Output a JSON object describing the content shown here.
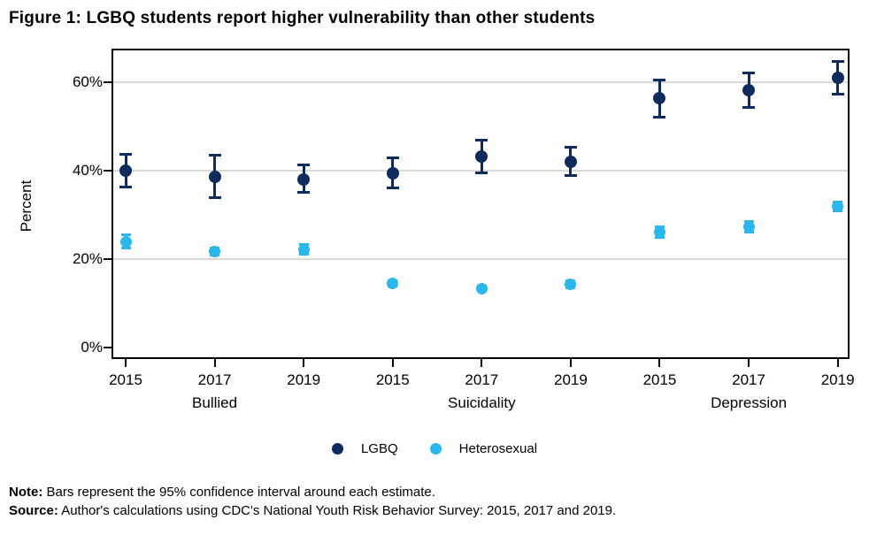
{
  "title": "Figure 1: LGBQ students report higher vulnerability than other students",
  "colors": {
    "lgbq": "#0e2b5e",
    "heterosexual": "#2ab7ec",
    "gridline": "#d9d9d9",
    "frame": "#000000",
    "text": "#000000"
  },
  "notes": {
    "note_label": "Note:",
    "note_text": " Bars represent the 95% confidence interval around each estimate.",
    "source_label": "Source:",
    "source_text": " Author's calculations using CDC's National Youth Risk Behavior Survey: 2015, 2017 and 2019."
  },
  "chart_data": {
    "type": "scatter",
    "title": "Figure 1: LGBQ students report higher vulnerability than other students",
    "xlabel": "",
    "ylabel": "Percent",
    "grid": "horizontal",
    "legend_position": "bottom",
    "x_slots": [
      "2015",
      "2017",
      "2019",
      "2015",
      "2017",
      "2019",
      "2015",
      "2017",
      "2019"
    ],
    "groups": [
      {
        "label": "Bullied",
        "slot": 1
      },
      {
        "label": "Suicidality",
        "slot": 4
      },
      {
        "label": "Depression",
        "slot": 7
      }
    ],
    "yticks": [
      {
        "value": 0,
        "label": "0%",
        "grid": false
      },
      {
        "value": 20,
        "label": "20%",
        "grid": true
      },
      {
        "value": 40,
        "label": "40%",
        "grid": true
      },
      {
        "value": 60,
        "label": "60%",
        "grid": true
      }
    ],
    "axis": {
      "ymin": -2.5,
      "ymax": 67.6,
      "x_start_frac": 0.0192,
      "x_step_frac": 0.1206
    },
    "series": [
      {
        "name": "LGBQ",
        "color_key": "lgbq",
        "points": [
          {
            "year": "2015",
            "group": "Bullied",
            "value": 40.0,
            "ci_low": 36.3,
            "ci_high": 43.8
          },
          {
            "year": "2017",
            "group": "Bullied",
            "value": 38.6,
            "ci_low": 33.8,
            "ci_high": 43.7
          },
          {
            "year": "2019",
            "group": "Bullied",
            "value": 38.1,
            "ci_low": 35.0,
            "ci_high": 41.4
          },
          {
            "year": "2015",
            "group": "Suicidality",
            "value": 39.4,
            "ci_low": 36.1,
            "ci_high": 43.0
          },
          {
            "year": "2017",
            "group": "Suicidality",
            "value": 43.3,
            "ci_low": 39.5,
            "ci_high": 47.1
          },
          {
            "year": "2019",
            "group": "Suicidality",
            "value": 42.0,
            "ci_low": 38.9,
            "ci_high": 45.4
          },
          {
            "year": "2015",
            "group": "Depression",
            "value": 56.4,
            "ci_low": 52.1,
            "ci_high": 60.7
          },
          {
            "year": "2017",
            "group": "Depression",
            "value": 58.3,
            "ci_low": 54.3,
            "ci_high": 62.3
          },
          {
            "year": "2019",
            "group": "Depression",
            "value": 61.1,
            "ci_low": 57.2,
            "ci_high": 64.9
          }
        ]
      },
      {
        "name": "Heterosexual",
        "color_key": "heterosexual",
        "points": [
          {
            "year": "2015",
            "group": "Bullied",
            "value": 24.0,
            "ci_low": 22.5,
            "ci_high": 25.6
          },
          {
            "year": "2017",
            "group": "Bullied",
            "value": 21.8,
            "ci_low": 20.9,
            "ci_high": 22.7
          },
          {
            "year": "2019",
            "group": "Bullied",
            "value": 22.2,
            "ci_low": 21.0,
            "ci_high": 23.4
          },
          {
            "year": "2015",
            "group": "Suicidality",
            "value": 14.5,
            "ci_low": 13.8,
            "ci_high": 15.2
          },
          {
            "year": "2017",
            "group": "Suicidality",
            "value": 13.4,
            "ci_low": 12.8,
            "ci_high": 14.0
          },
          {
            "year": "2019",
            "group": "Suicidality",
            "value": 14.4,
            "ci_low": 13.5,
            "ci_high": 15.2
          },
          {
            "year": "2015",
            "group": "Depression",
            "value": 26.2,
            "ci_low": 24.9,
            "ci_high": 27.5
          },
          {
            "year": "2017",
            "group": "Depression",
            "value": 27.4,
            "ci_low": 26.1,
            "ci_high": 28.7
          },
          {
            "year": "2019",
            "group": "Depression",
            "value": 32.0,
            "ci_low": 30.9,
            "ci_high": 33.1
          }
        ]
      }
    ]
  }
}
